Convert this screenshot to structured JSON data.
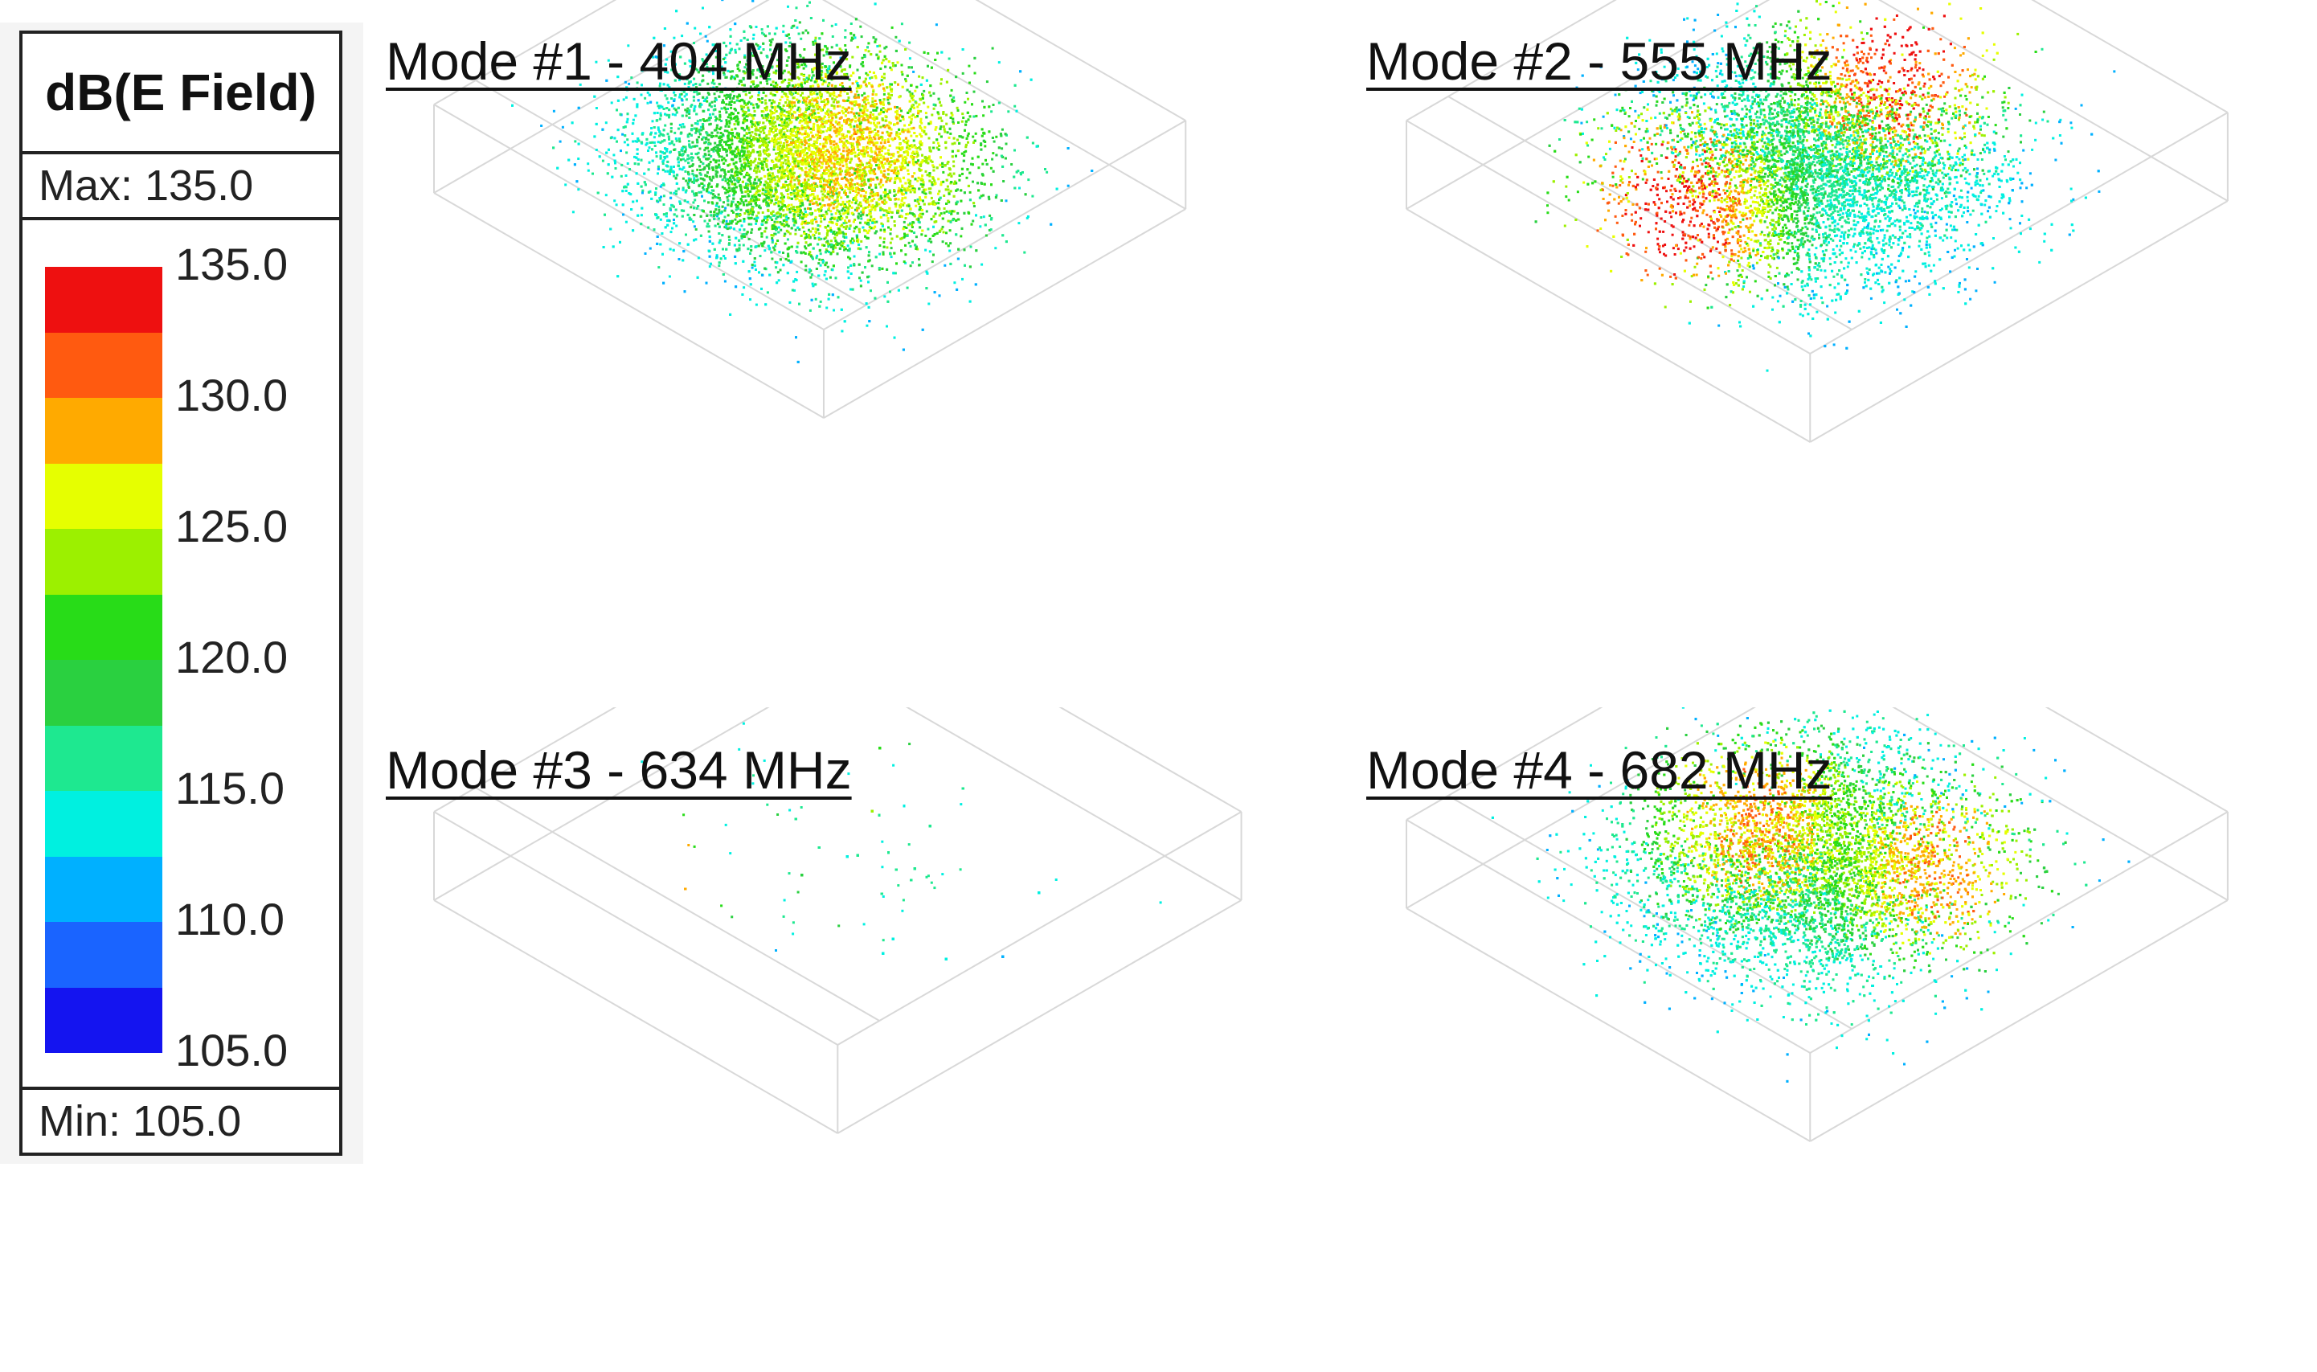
{
  "legend": {
    "title": "dB(E Field)",
    "max_label": "Max: 135.0",
    "min_label": "Min: 105.0",
    "ticks": [
      "135.0",
      "130.0",
      "125.0",
      "120.0",
      "115.0",
      "110.0",
      "105.0"
    ],
    "colors": [
      "#ee1010",
      "#ff5a10",
      "#ffaa00",
      "#e6ff00",
      "#9cf000",
      "#28dc18",
      "#2ad040",
      "#1ee890",
      "#00f0e0",
      "#00b0ff",
      "#1a64ff",
      "#1414f0"
    ]
  },
  "panels": [
    {
      "title": "Mode #1 - 404 MHz"
    },
    {
      "title": "Mode #2 - 555 MHz"
    },
    {
      "title": "Mode #3 - 634 MHz"
    },
    {
      "title": "Mode #4 - 682 MHz"
    }
  ]
}
